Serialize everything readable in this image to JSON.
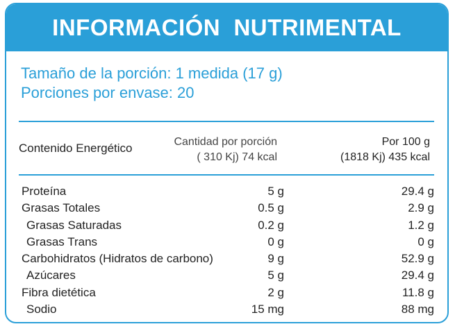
{
  "header": {
    "title": "INFORMACIÓN  NUTRIMENTAL"
  },
  "serving": {
    "size": "Tamaño de la porción: 1 medida (17 g)",
    "per_container": "Porciones por envase: 20"
  },
  "columns": {
    "energy_label": "Contenido Energético",
    "portion_title": "Cantidad por porción",
    "portion_energy": "( 310 Kj) 74 kcal",
    "per100_title": "Por 100 g",
    "per100_energy": "(1818 Kj) 435 kcal"
  },
  "nutrients": [
    {
      "name": "Proteína",
      "portion": "5 g",
      "per100": "29.4 g",
      "indent": false
    },
    {
      "name": "Grasas Totales",
      "portion": "0.5 g",
      "per100": "2.9 g",
      "indent": false
    },
    {
      "name": "Grasas Saturadas",
      "portion": "0.2 g",
      "per100": "1.2 g",
      "indent": true
    },
    {
      "name": "Grasas Trans",
      "portion": "0 g",
      "per100": "0 g",
      "indent": true
    },
    {
      "name": "Carbohidratos (Hidratos de carbono)",
      "portion": "9 g",
      "per100": "52.9 g",
      "indent": false
    },
    {
      "name": "Azúcares",
      "portion": "5 g",
      "per100": "29.4 g",
      "indent": true
    },
    {
      "name": "Fibra dietética",
      "portion": "2 g",
      "per100": "11.8 g",
      "indent": false
    },
    {
      "name": "Sodio",
      "portion": "15 mg",
      "per100": "88 mg",
      "indent": true
    }
  ],
  "colors": {
    "accent": "#2a9fd8"
  }
}
